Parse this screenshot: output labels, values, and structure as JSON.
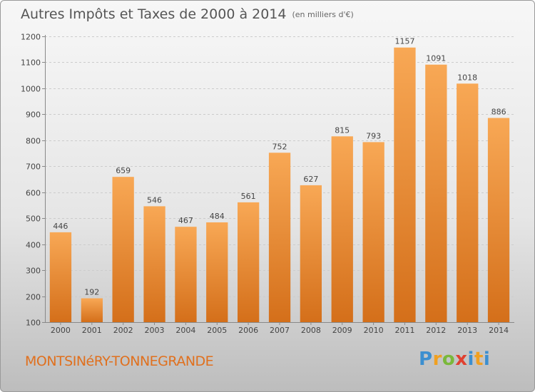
{
  "header": {
    "title": "Autres Impôts et Taxes de 2000 à 2014",
    "unit": "(en milliers d'€)"
  },
  "footer": {
    "city": "MONTSINéRY-TONNEGRANDE",
    "logo_letters": [
      "P",
      "r",
      "o",
      "x",
      "i",
      "t",
      "i"
    ]
  },
  "colors": {
    "bar_light": "#f8a855",
    "bar_dark": "#d46f1a",
    "grid": "#cccccc",
    "axis": "#888888",
    "text": "#444444"
  },
  "chart_data": {
    "type": "bar",
    "title": "Autres Impôts et Taxes de 2000 à 2014",
    "subtitle": "(en milliers d'€)",
    "categories": [
      "2000",
      "2001",
      "2002",
      "2003",
      "2004",
      "2005",
      "2006",
      "2007",
      "2008",
      "2009",
      "2010",
      "2011",
      "2012",
      "2013",
      "2014"
    ],
    "values": [
      446,
      192,
      659,
      546,
      467,
      484,
      561,
      752,
      627,
      815,
      793,
      1157,
      1091,
      1018,
      886
    ],
    "ylim": [
      100,
      1200
    ],
    "yticks": [
      100,
      200,
      300,
      400,
      500,
      600,
      700,
      800,
      900,
      1000,
      1100,
      1200
    ],
    "grid": true,
    "legend": "none",
    "data_labels": true
  }
}
